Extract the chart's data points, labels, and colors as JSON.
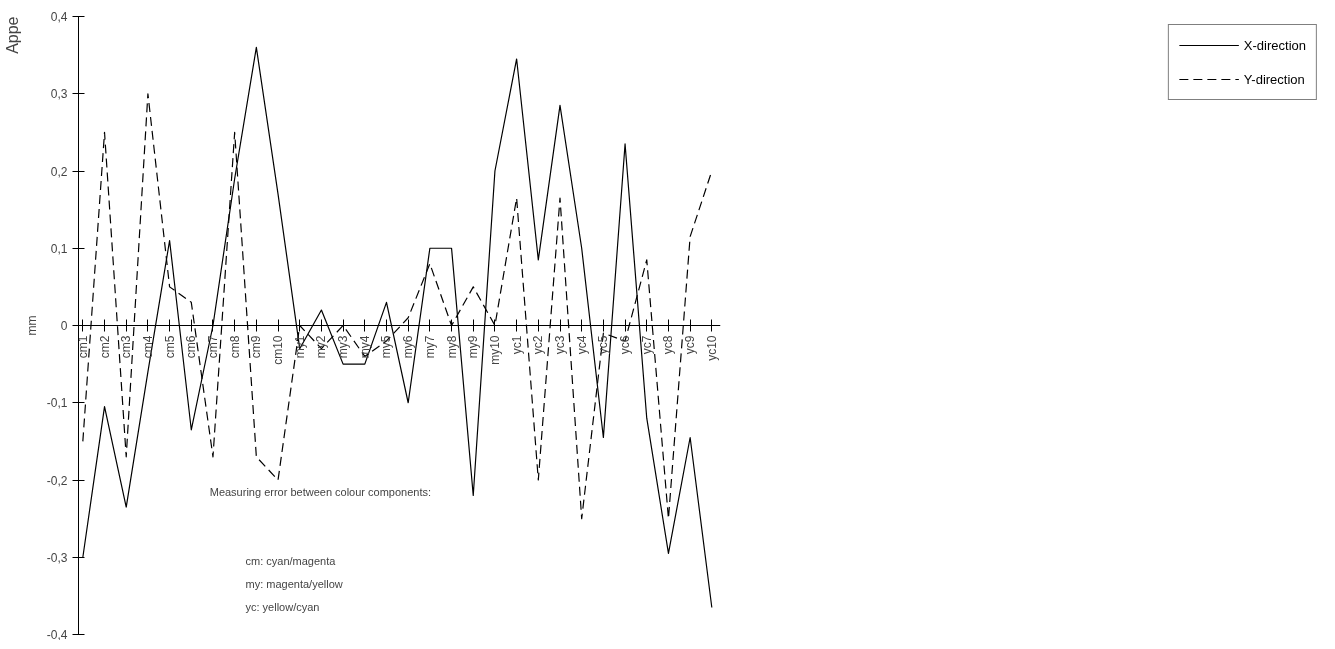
{
  "chart_data": {
    "type": "line",
    "ylabel": "mm",
    "categories": [
      "cm1",
      "cm2",
      "cm3",
      "cm4",
      "cm5",
      "cm6",
      "cm7",
      "cm8",
      "cm9",
      "cm10",
      "my1",
      "my2",
      "my3",
      "my4",
      "my5",
      "my6",
      "my7",
      "my8",
      "my9",
      "my10",
      "yc1",
      "yc2",
      "yc3",
      "yc4",
      "yc5",
      "yc6",
      "yc7",
      "yc8",
      "yc9",
      "yc10"
    ],
    "series": [
      {
        "name": "X-direction",
        "color": "#000000",
        "line_style": "solid",
        "values": [
          -0.3,
          -0.105,
          -0.235,
          -0.06,
          0.11,
          -0.135,
          0.0,
          0.19,
          0.36,
          0.17,
          -0.03,
          0.02,
          -0.05,
          -0.05,
          0.03,
          -0.1,
          0.1,
          0.1,
          -0.22,
          0.2,
          0.345,
          0.085,
          0.285,
          0.1,
          -0.145,
          0.235,
          -0.12,
          -0.295,
          -0.145,
          -0.365
        ]
      },
      {
        "name": "Y-direction",
        "color": "#000000",
        "line_style": "dashed",
        "values": [
          -0.15,
          0.25,
          -0.17,
          0.3,
          0.05,
          0.03,
          -0.17,
          0.25,
          -0.17,
          -0.2,
          0.0,
          -0.03,
          0.0,
          -0.04,
          -0.02,
          0.01,
          0.08,
          0.0,
          0.05,
          0.0,
          0.165,
          -0.2,
          0.165,
          -0.25,
          -0.01,
          -0.02,
          0.085,
          -0.25,
          0.115,
          0.2
        ]
      }
    ],
    "ylim": [
      -0.4,
      0.4
    ],
    "yticks": [
      {
        "value": -0.4,
        "label": "-0,4"
      },
      {
        "value": -0.3,
        "label": "-0,3"
      },
      {
        "value": -0.2,
        "label": "-0,2"
      },
      {
        "value": -0.1,
        "label": "-0,1"
      },
      0,
      {
        "value": 0.1,
        "label": "0,1"
      },
      {
        "value": 0.2,
        "label": "0,2"
      },
      {
        "value": 0.3,
        "label": "0,3"
      },
      {
        "value": 0.4,
        "label": "0,4"
      }
    ],
    "legend": "right",
    "grid": false,
    "marker": "none",
    "annotations": [
      "Appe",
      "Measuring error between colour components:",
      "cm: cyan/magenta",
      "my: magenta/yellow",
      "yc: yellow/cyan"
    ]
  }
}
